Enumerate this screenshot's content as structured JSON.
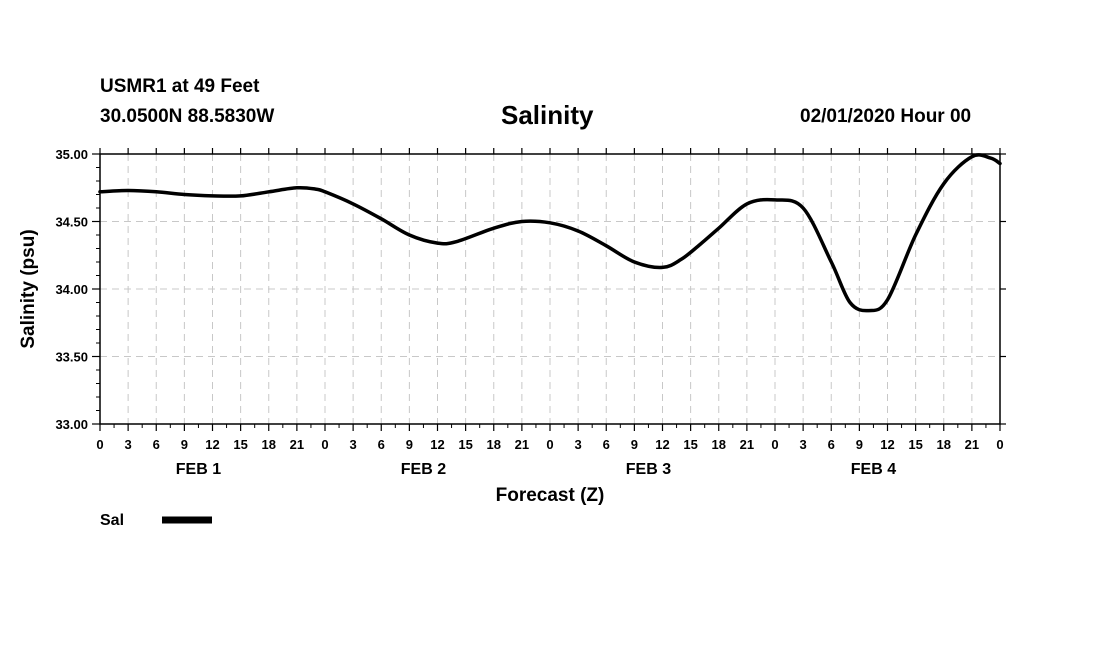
{
  "header": {
    "station": "USMR1 at 49 Feet",
    "coords": "30.0500N 88.5830W",
    "title": "Salinity",
    "timestamp": "02/01/2020 Hour 00"
  },
  "chart_data": {
    "type": "line",
    "title": "Salinity",
    "xlabel": "Forecast (Z)",
    "ylabel": "Salinity (psu)",
    "xlim": [
      0,
      96
    ],
    "ylim": [
      33.0,
      35.0
    ],
    "yticks": [
      "33.00",
      "33.50",
      "34.00",
      "34.50",
      "35.00"
    ],
    "xticks": [
      "0",
      "3",
      "6",
      "9",
      "12",
      "15",
      "18",
      "21",
      "0",
      "3",
      "6",
      "9",
      "12",
      "15",
      "18",
      "21",
      "0",
      "3",
      "6",
      "9",
      "12",
      "15",
      "18",
      "21",
      "0",
      "3",
      "6",
      "9",
      "12",
      "15",
      "18",
      "21",
      "0"
    ],
    "day_labels": [
      "FEB 1",
      "FEB 2",
      "FEB 3",
      "FEB 4"
    ],
    "grid": true,
    "legend_position": "bottom-left",
    "series": [
      {
        "name": "Sal",
        "color": "#000000",
        "x": [
          0,
          3,
          6,
          9,
          12,
          15,
          18,
          21,
          23,
          24,
          27,
          30,
          33,
          36,
          38,
          42,
          45,
          48,
          51,
          54,
          57,
          60,
          62,
          64,
          66,
          69,
          72,
          75,
          78,
          80,
          82,
          84,
          87,
          90,
          93,
          95,
          96
        ],
        "values": [
          34.72,
          34.73,
          34.72,
          34.7,
          34.69,
          34.69,
          34.72,
          34.75,
          34.74,
          34.72,
          34.63,
          34.52,
          34.4,
          34.34,
          34.35,
          34.45,
          34.5,
          34.49,
          34.43,
          34.32,
          34.2,
          34.16,
          34.22,
          34.33,
          34.45,
          34.63,
          34.66,
          34.6,
          34.2,
          33.9,
          33.84,
          33.92,
          34.4,
          34.78,
          34.98,
          34.97,
          34.93
        ]
      }
    ]
  }
}
